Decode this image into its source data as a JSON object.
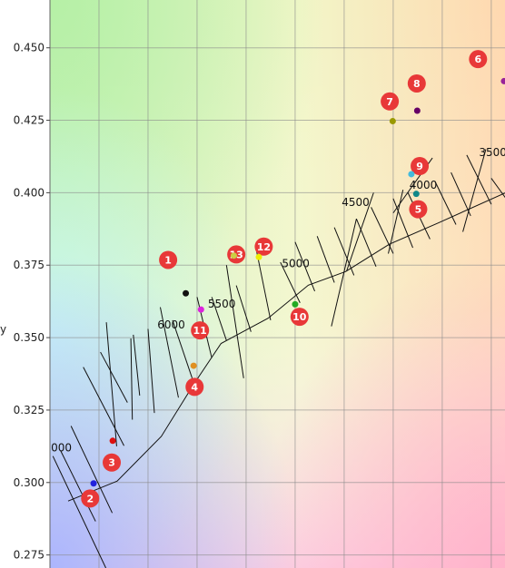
{
  "chart_data": {
    "type": "scatter",
    "title": "",
    "xlabel": "",
    "ylabel": "y",
    "xlim": [
      0.3,
      0.3928
    ],
    "ylim": [
      0.2705,
      0.4665
    ],
    "x_gridlines": [
      0.3,
      0.31,
      0.32,
      0.33,
      0.34,
      0.35,
      0.36,
      0.37,
      0.38,
      0.39
    ],
    "y_ticks": [
      {
        "value": 0.275,
        "label": "0.275"
      },
      {
        "value": 0.3,
        "label": "0.300"
      },
      {
        "value": 0.325,
        "label": "0.325"
      },
      {
        "value": 0.35,
        "label": "0.350"
      },
      {
        "value": 0.375,
        "label": "0.375"
      },
      {
        "value": 0.4,
        "label": "0.400"
      },
      {
        "value": 0.425,
        "label": "0.425"
      },
      {
        "value": 0.45,
        "label": "0.450"
      }
    ],
    "grid": true,
    "background": "CIE 1931 chromaticity gradient",
    "planckian_locus": [
      [
        0.3037,
        0.2936
      ],
      [
        0.3137,
        0.3005
      ],
      [
        0.3227,
        0.3159
      ],
      [
        0.3294,
        0.3341
      ],
      [
        0.3349,
        0.348
      ],
      [
        0.3445,
        0.3567
      ],
      [
        0.3527,
        0.3681
      ],
      [
        0.3603,
        0.3728
      ],
      [
        0.3692,
        0.3822
      ],
      [
        0.3791,
        0.3895
      ],
      [
        0.3928,
        0.3999
      ]
    ],
    "cct_labels": [
      {
        "text": "000",
        "x": 0.3002,
        "y": 0.3107
      },
      {
        "text": "6000",
        "x": 0.3219,
        "y": 0.3531
      },
      {
        "text": "5500",
        "x": 0.3322,
        "y": 0.3603
      },
      {
        "text": "5000",
        "x": 0.3473,
        "y": 0.3743
      },
      {
        "text": "4500",
        "x": 0.3595,
        "y": 0.3955
      },
      {
        "text": "4000",
        "x": 0.3733,
        "y": 0.4014
      },
      {
        "text": "3500",
        "x": 0.3875,
        "y": 0.4127
      }
    ],
    "isotherm_lines": [
      [
        [
          0.3006,
          0.3091
        ],
        [
          0.3114,
          0.2705
        ]
      ],
      [
        [
          0.3022,
          0.3109
        ],
        [
          0.3093,
          0.2866
        ]
      ],
      [
        [
          0.3043,
          0.3195
        ],
        [
          0.3127,
          0.2895
        ]
      ],
      [
        [
          0.3068,
          0.3398
        ],
        [
          0.3151,
          0.3127
        ]
      ],
      [
        [
          0.3103,
          0.345
        ],
        [
          0.3158,
          0.3276
        ]
      ],
      [
        [
          0.3115,
          0.3553
        ],
        [
          0.3136,
          0.3125
        ]
      ],
      [
        [
          0.3165,
          0.3497
        ],
        [
          0.3168,
          0.3217
        ]
      ],
      [
        [
          0.317,
          0.351
        ],
        [
          0.3183,
          0.33
        ]
      ],
      [
        [
          0.32,
          0.353
        ],
        [
          0.3213,
          0.324
        ]
      ],
      [
        [
          0.3225,
          0.3605
        ],
        [
          0.3262,
          0.3293
        ]
      ],
      [
        [
          0.325,
          0.356
        ],
        [
          0.329,
          0.336
        ]
      ],
      [
        [
          0.33,
          0.364
        ],
        [
          0.333,
          0.343
        ]
      ],
      [
        [
          0.333,
          0.364
        ],
        [
          0.336,
          0.349
        ]
      ],
      [
        [
          0.336,
          0.375
        ],
        [
          0.3395,
          0.336
        ]
      ],
      [
        [
          0.338,
          0.368
        ],
        [
          0.341,
          0.352
        ]
      ],
      [
        [
          0.342,
          0.381
        ],
        [
          0.345,
          0.356
        ]
      ],
      [
        [
          0.347,
          0.376
        ],
        [
          0.351,
          0.362
        ]
      ],
      [
        [
          0.35,
          0.383
        ],
        [
          0.354,
          0.366
        ]
      ],
      [
        [
          0.3545,
          0.385
        ],
        [
          0.358,
          0.369
        ]
      ],
      [
        [
          0.358,
          0.388
        ],
        [
          0.362,
          0.3715
        ]
      ],
      [
        [
          0.3625,
          0.391
        ],
        [
          0.3665,
          0.3745
        ]
      ],
      [
        [
          0.3655,
          0.395
        ],
        [
          0.37,
          0.379
        ]
      ],
      [
        [
          0.37,
          0.398
        ],
        [
          0.374,
          0.381
        ]
      ],
      [
        [
          0.373,
          0.4
        ],
        [
          0.3775,
          0.384
        ]
      ],
      [
        [
          0.3785,
          0.404
        ],
        [
          0.3828,
          0.389
        ]
      ],
      [
        [
          0.3818,
          0.407
        ],
        [
          0.3858,
          0.392
        ]
      ],
      [
        [
          0.385,
          0.413
        ],
        [
          0.39,
          0.396
        ]
      ],
      [
        [
          0.39,
          0.405
        ],
        [
          0.393,
          0.398
        ]
      ],
      [
        [
          0.3625,
          0.391
        ],
        [
          0.3574,
          0.3539
        ]
      ],
      [
        [
          0.366,
          0.4
        ],
        [
          0.3605,
          0.373
        ]
      ],
      [
        [
          0.372,
          0.401
        ],
        [
          0.369,
          0.379
        ]
      ],
      [
        [
          0.378,
          0.412
        ],
        [
          0.37,
          0.393
        ]
      ],
      [
        [
          0.3889,
          0.415
        ],
        [
          0.3842,
          0.3865
        ]
      ]
    ],
    "points": [
      {
        "id": "1",
        "x": 0.3277,
        "y": 0.3653,
        "color": "#111111",
        "label_x": 0.3241,
        "label_y": 0.3768
      },
      {
        "id": "2",
        "x": 0.3089,
        "y": 0.2997,
        "color": "#2222dd",
        "label_x": 0.3082,
        "label_y": 0.2945
      },
      {
        "id": "3",
        "x": 0.3128,
        "y": 0.3144,
        "color": "#dd1111",
        "label_x": 0.3126,
        "label_y": 0.3069
      },
      {
        "id": "4",
        "x": 0.3293,
        "y": 0.3403,
        "color": "#e09020",
        "label_x": 0.3295,
        "label_y": 0.333
      },
      {
        "id": "5",
        "x": 0.3747,
        "y": 0.3996,
        "color": "#118888",
        "label_x": 0.3751,
        "label_y": 0.3943
      },
      {
        "id": "6",
        "x": 0.3926,
        "y": 0.4385,
        "color": "#992299",
        "label_x": 0.3873,
        "label_y": 0.4461
      },
      {
        "id": "7",
        "x": 0.3699,
        "y": 0.4247,
        "color": "#999900",
        "label_x": 0.3693,
        "label_y": 0.4315
      },
      {
        "id": "8",
        "x": 0.3749,
        "y": 0.4283,
        "color": "#660066",
        "label_x": 0.3748,
        "label_y": 0.4377
      },
      {
        "id": "9",
        "x": 0.3737,
        "y": 0.4064,
        "color": "#44bbdd",
        "label_x": 0.3754,
        "label_y": 0.4092
      },
      {
        "id": "10",
        "x": 0.35,
        "y": 0.3615,
        "color": "#22aa22",
        "label_x": 0.3509,
        "label_y": 0.3572
      },
      {
        "id": "11",
        "x": 0.3308,
        "y": 0.3597,
        "color": "#dd22dd",
        "label_x": 0.3306,
        "label_y": 0.3525
      },
      {
        "id": "12",
        "x": 0.3426,
        "y": 0.3778,
        "color": "#eeee00",
        "label_x": 0.3436,
        "label_y": 0.3814
      },
      {
        "id": "13",
        "x": 0.3375,
        "y": 0.3783,
        "color": "#cccc44",
        "label_x": 0.338,
        "label_y": 0.3787
      }
    ]
  }
}
